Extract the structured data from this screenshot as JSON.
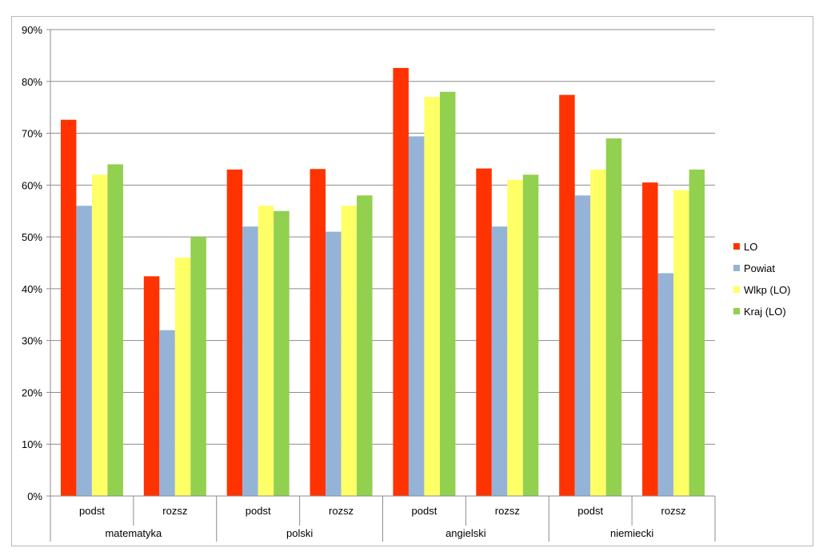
{
  "chart_data": {
    "type": "bar",
    "title": "",
    "xlabel": "",
    "ylabel": "",
    "ylim": [
      0,
      90
    ],
    "y_ticks": [
      "0%",
      "10%",
      "20%",
      "30%",
      "40%",
      "50%",
      "60%",
      "70%",
      "80%",
      "90%"
    ],
    "grid": true,
    "legend_position": "right",
    "groups": [
      {
        "label": "matematyka",
        "categories": [
          "podst",
          "rozsz"
        ]
      },
      {
        "label": "polski",
        "categories": [
          "podst",
          "rozsz"
        ]
      },
      {
        "label": "angielski",
        "categories": [
          "podst",
          "rozsz"
        ]
      },
      {
        "label": "niemiecki",
        "categories": [
          "podst",
          "rozsz"
        ]
      }
    ],
    "categories": [
      "podst",
      "rozsz",
      "podst",
      "rozsz",
      "podst",
      "rozsz",
      "podst",
      "rozsz"
    ],
    "series": [
      {
        "name": "LO",
        "color": "#ff3300",
        "values": [
          72.6,
          42.4,
          63,
          63.1,
          82.6,
          63.2,
          77.4,
          60.5
        ]
      },
      {
        "name": "Powiat",
        "color": "#95b3d7",
        "values": [
          56,
          32,
          52,
          51,
          69.4,
          52,
          58,
          43
        ]
      },
      {
        "name": "Wlkp (LO)",
        "color": "#ffff66",
        "values": [
          62,
          46,
          56,
          56,
          77,
          61,
          63,
          59
        ]
      },
      {
        "name": "Kraj (LO)",
        "color": "#92d050",
        "values": [
          64,
          50,
          55,
          58,
          78,
          62,
          69,
          63
        ]
      }
    ]
  }
}
